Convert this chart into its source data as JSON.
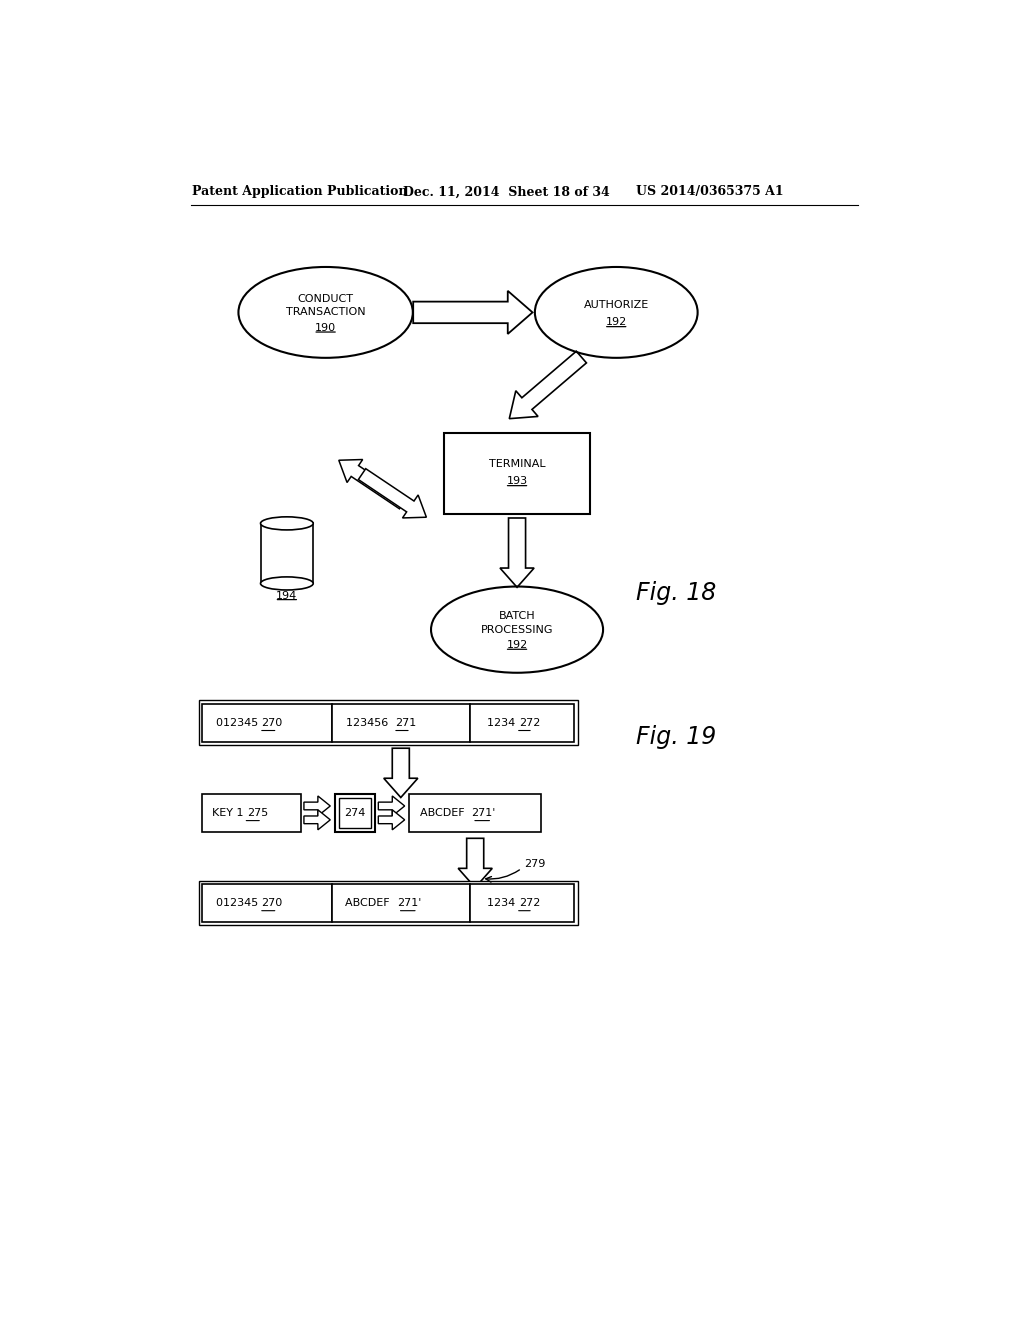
{
  "bg_color": "#ffffff",
  "header_left": "Patent Application Publication",
  "header_mid": "Dec. 11, 2014  Sheet 18 of 34",
  "header_right": "US 2014/0365375 A1",
  "fig18_label": "Fig. 18",
  "fig19_label": "Fig. 19",
  "label_279": "279"
}
